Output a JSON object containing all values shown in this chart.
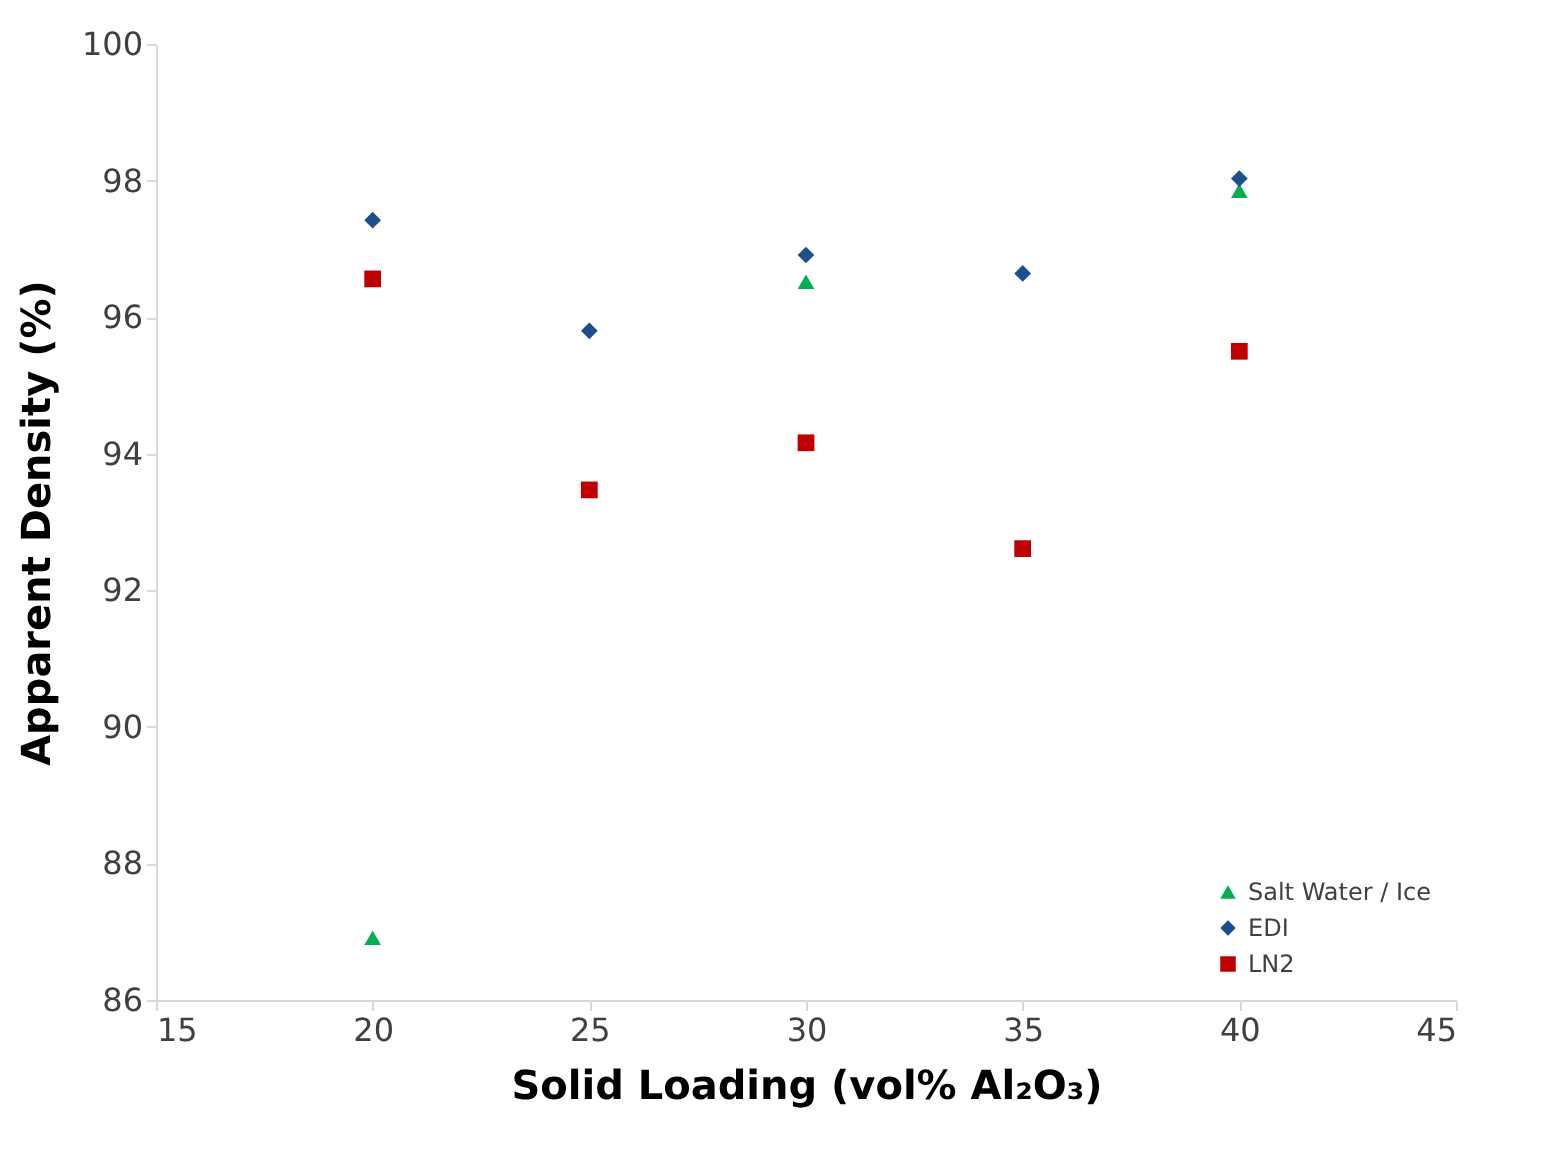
{
  "chart_data": {
    "type": "scatter",
    "xlabel": "Solid Loading (vol% Al₂O₃)",
    "ylabel": "Apparent Density (%)",
    "xlim": [
      15,
      45
    ],
    "xticks": [
      15,
      20,
      25,
      30,
      35,
      40,
      45
    ],
    "ylim": [
      86,
      100
    ],
    "yticks": [
      86,
      88,
      90,
      92,
      94,
      96,
      98,
      100
    ],
    "grid": false,
    "legend": "bottom right",
    "series": [
      {
        "name": "Salt Water / Ice",
        "color": "#00b050",
        "marker": "triangle",
        "x": [
          20,
          30,
          40
        ],
        "values": [
          86.91,
          96.52,
          97.85
        ]
      },
      {
        "name": "EDI",
        "color": "#1f4e8c",
        "marker": "diamond",
        "x": [
          20,
          25,
          30,
          35,
          40
        ],
        "values": [
          97.42,
          95.8,
          96.91,
          96.64,
          98.03
        ]
      },
      {
        "name": "LN2",
        "color": "#c00000",
        "marker": "square",
        "x": [
          20,
          25,
          30,
          35,
          40
        ],
        "values": [
          96.56,
          93.47,
          94.16,
          92.61,
          95.5
        ]
      }
    ]
  }
}
